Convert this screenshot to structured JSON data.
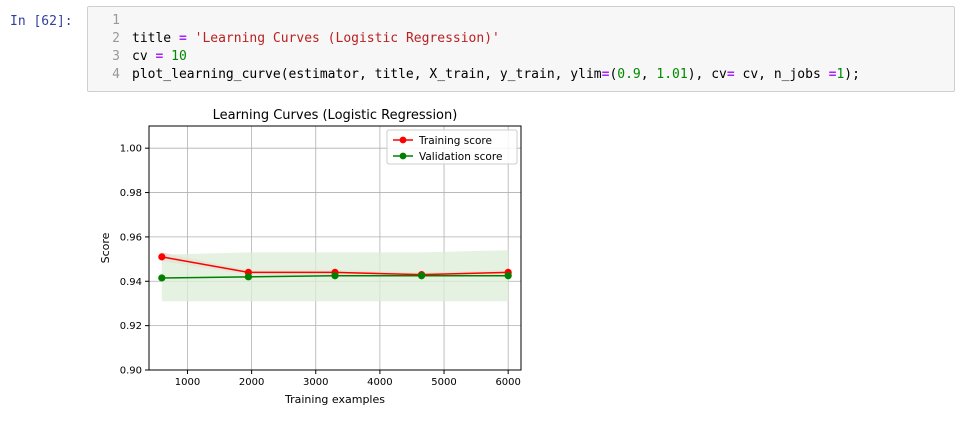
{
  "cell": {
    "prompt": "In [62]:",
    "lines": [
      {
        "num": "1",
        "tokens": []
      },
      {
        "num": "2",
        "tokens": [
          {
            "t": "title ",
            "c": "var"
          },
          {
            "t": "=",
            "c": "op"
          },
          {
            "t": " ",
            "c": "var"
          },
          {
            "t": "'Learning Curves (Logistic Regression)'",
            "c": "str"
          }
        ]
      },
      {
        "num": "3",
        "tokens": [
          {
            "t": "cv ",
            "c": "var"
          },
          {
            "t": "=",
            "c": "op"
          },
          {
            "t": " ",
            "c": "var"
          },
          {
            "t": "10",
            "c": "num"
          }
        ]
      },
      {
        "num": "4",
        "tokens": [
          {
            "t": "plot_learning_curve(estimator, title, X_train, y_train, ylim",
            "c": "var"
          },
          {
            "t": "=",
            "c": "op"
          },
          {
            "t": "(",
            "c": "var"
          },
          {
            "t": "0.9",
            "c": "num"
          },
          {
            "t": ", ",
            "c": "var"
          },
          {
            "t": "1.01",
            "c": "num"
          },
          {
            "t": "), cv",
            "c": "var"
          },
          {
            "t": "=",
            "c": "op"
          },
          {
            "t": " cv, n_jobs ",
            "c": "var"
          },
          {
            "t": "=",
            "c": "op"
          },
          {
            "t": "1",
            "c": "num"
          },
          {
            "t": ");",
            "c": "var"
          }
        ]
      }
    ]
  },
  "chart_data": {
    "type": "line",
    "title": "Learning Curves (Logistic Regression)",
    "xlabel": "Training examples",
    "ylabel": "Score",
    "xlim": [
      400,
      6200
    ],
    "ylim": [
      0.9,
      1.01
    ],
    "xticks": [
      1000,
      2000,
      3000,
      4000,
      5000,
      6000
    ],
    "yticks": [
      0.9,
      0.92,
      0.94,
      0.96,
      0.98,
      1.0
    ],
    "ytick_labels": [
      "0.90",
      "0.92",
      "0.94",
      "0.96",
      "0.98",
      "1.00"
    ],
    "grid": true,
    "legend_position": "top-right",
    "x": [
      600,
      1950,
      3300,
      4650,
      6000
    ],
    "series": [
      {
        "name": "Training score",
        "color": "#ff0000",
        "band_color": "#f4c6c6",
        "values": [
          0.951,
          0.944,
          0.944,
          0.943,
          0.944
        ],
        "lower": [
          0.949,
          0.943,
          0.943,
          0.942,
          0.943
        ],
        "upper": [
          0.953,
          0.945,
          0.945,
          0.944,
          0.945
        ]
      },
      {
        "name": "Validation score",
        "color": "#008000",
        "band_color": "#dcedd7",
        "values": [
          0.9415,
          0.942,
          0.9425,
          0.9425,
          0.9425
        ],
        "lower": [
          0.931,
          0.931,
          0.931,
          0.931,
          0.931
        ],
        "upper": [
          0.952,
          0.953,
          0.953,
          0.953,
          0.954
        ]
      }
    ]
  }
}
